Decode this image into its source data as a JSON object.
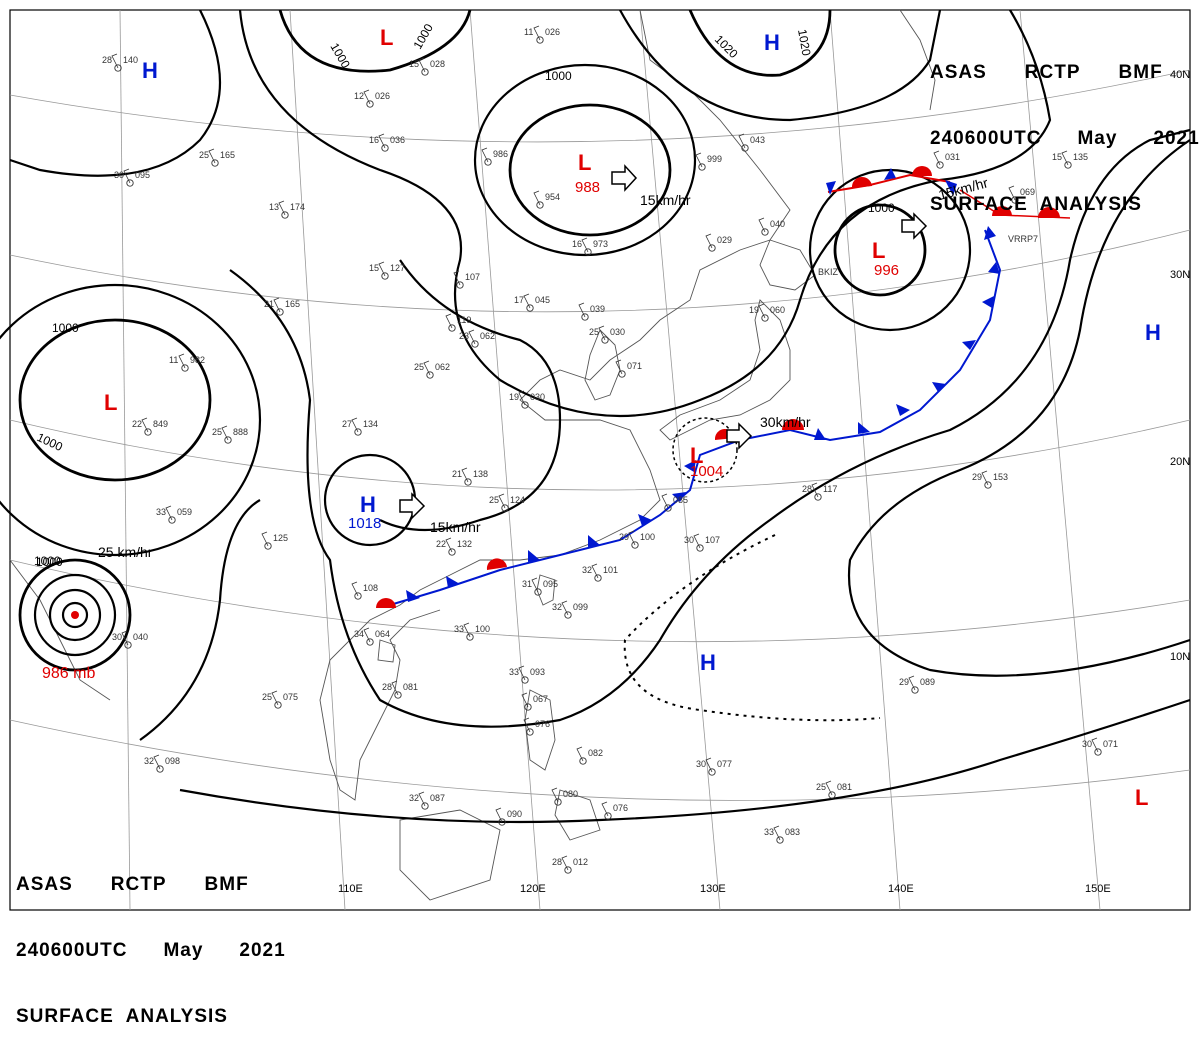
{
  "header": {
    "line1": [
      "ASAS",
      "RCTP",
      "BMF"
    ],
    "line2": [
      "240600UTC",
      "May",
      "2021"
    ],
    "line3": "SURFACE  ANALYSIS"
  },
  "colors": {
    "low": "#e00000",
    "high": "#0018d0",
    "warm_front": "#e00000",
    "cold_front": "#0018d0",
    "isobar": "#000000",
    "coast": "#555555",
    "grid": "#999999"
  },
  "lat_labels": [
    "30N",
    "20N",
    "10N"
  ],
  "lon_labels": [
    "110E",
    "120E",
    "130E",
    "140E",
    "150E"
  ],
  "isobar_labels": [
    "1000",
    "1000",
    "1000",
    "1020",
    "1020",
    "1000",
    "1000",
    "1000",
    "1000"
  ],
  "pressure_centers": [
    {
      "symbol": "L",
      "type": "low",
      "value": ""
    },
    {
      "symbol": "H",
      "type": "high",
      "value": ""
    },
    {
      "symbol": "L",
      "type": "low",
      "value": "988"
    },
    {
      "symbol": "H",
      "type": "high",
      "value": ""
    },
    {
      "symbol": "L",
      "type": "low",
      "value": "996"
    },
    {
      "symbol": "H",
      "type": "high",
      "value": ""
    },
    {
      "symbol": "L",
      "type": "low",
      "value": ""
    },
    {
      "symbol": "H",
      "type": "high",
      "value": "1018"
    },
    {
      "symbol": "L",
      "type": "low",
      "value": "1004"
    },
    {
      "symbol": "H",
      "type": "high",
      "value": ""
    },
    {
      "symbol": "L",
      "type": "low",
      "value": ""
    }
  ],
  "typhoon": {
    "label": "986 mb",
    "isobar": "1000",
    "speed": "25 km/hr"
  },
  "motion_labels": [
    "15km/hr",
    "15km/hr",
    "30km/hr",
    "15km/hr"
  ],
  "stations": [
    {
      "a": "28",
      "b": "140"
    },
    {
      "a": "11",
      "b": "026"
    },
    {
      "a": "12",
      "b": "026"
    },
    {
      "a": "15",
      "b": "028"
    },
    {
      "a": "16",
      "b": "036"
    },
    {
      "a": "25",
      "b": "165"
    },
    {
      "a": "30",
      "b": "095"
    },
    {
      "a": "13",
      "b": "174"
    },
    {
      "a": "",
      "b": "986"
    },
    {
      "a": "",
      "b": "954"
    },
    {
      "a": "16",
      "b": "973"
    },
    {
      "a": "",
      "b": "043"
    },
    {
      "a": "",
      "b": "999"
    },
    {
      "a": "",
      "b": "031"
    },
    {
      "a": "",
      "b": "069"
    },
    {
      "a": "15",
      "b": "135"
    },
    {
      "a": "15",
      "b": "127"
    },
    {
      "a": "",
      "b": "107"
    },
    {
      "a": "17",
      "b": "045"
    },
    {
      "a": "",
      "b": "039"
    },
    {
      "a": "",
      "b": "029"
    },
    {
      "a": "",
      "b": "040"
    },
    {
      "a": "19",
      "b": "060"
    },
    {
      "a": "21",
      "b": "165"
    },
    {
      "a": "",
      "b": "119"
    },
    {
      "a": "23",
      "b": "062"
    },
    {
      "a": "25",
      "b": "030"
    },
    {
      "a": "",
      "b": "071"
    },
    {
      "a": "11",
      "b": "982"
    },
    {
      "a": "25",
      "b": "062"
    },
    {
      "a": "19",
      "b": "030"
    },
    {
      "a": "22",
      "b": "849"
    },
    {
      "a": "25",
      "b": "888"
    },
    {
      "a": "27",
      "b": "134"
    },
    {
      "a": "21",
      "b": "138"
    },
    {
      "a": "25",
      "b": "124"
    },
    {
      "a": "",
      "b": "085"
    },
    {
      "a": "28",
      "b": "117"
    },
    {
      "a": "29",
      "b": "153"
    },
    {
      "a": "33",
      "b": "059"
    },
    {
      "a": "",
      "b": "125"
    },
    {
      "a": "22",
      "b": "132"
    },
    {
      "a": "29",
      "b": "100"
    },
    {
      "a": "30",
      "b": "107"
    },
    {
      "a": "32",
      "b": "101"
    },
    {
      "a": "32",
      "b": "099"
    },
    {
      "a": "31",
      "b": "095"
    },
    {
      "a": "",
      "b": "108"
    },
    {
      "a": "34",
      "b": "064"
    },
    {
      "a": "33",
      "b": "100"
    },
    {
      "a": "30",
      "b": "040"
    },
    {
      "a": "25",
      "b": "075"
    },
    {
      "a": "28",
      "b": "081"
    },
    {
      "a": "33",
      "b": "093"
    },
    {
      "a": "",
      "b": "067"
    },
    {
      "a": "",
      "b": "076"
    },
    {
      "a": "",
      "b": "082"
    },
    {
      "a": "30",
      "b": "077"
    },
    {
      "a": "29",
      "b": "089"
    },
    {
      "a": "32",
      "b": "098"
    },
    {
      "a": "30",
      "b": "071"
    },
    {
      "a": "32",
      "b": "087"
    },
    {
      "a": "",
      "b": "090"
    },
    {
      "a": "",
      "b": "080"
    },
    {
      "a": "",
      "b": "076"
    },
    {
      "a": "25",
      "b": "081"
    },
    {
      "a": "33",
      "b": "083"
    },
    {
      "a": "28",
      "b": "012"
    }
  ],
  "station_codes": [
    "BKIZ",
    "VRRP7"
  ]
}
